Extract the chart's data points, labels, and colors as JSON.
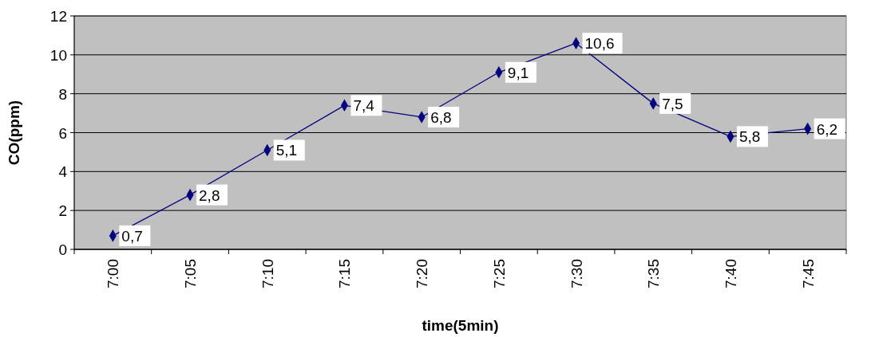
{
  "chart_data": {
    "type": "line",
    "xlabel": "time(5min)",
    "ylabel": "CO(ppm)",
    "categories": [
      "7:00",
      "7:05",
      "7:10",
      "7:15",
      "7:20",
      "7:25",
      "7:30",
      "7:35",
      "7:40",
      "7:45"
    ],
    "series": [
      {
        "color": "#000080",
        "values": [
          0.7,
          2.8,
          5.1,
          7.4,
          6.8,
          9.1,
          10.6,
          7.5,
          5.8,
          6.2
        ],
        "value_labels": [
          "0,7",
          "2,8",
          "5,1",
          "7,4",
          "6,8",
          "9,1",
          "10,6",
          "7,5",
          "5,8",
          "6,2"
        ]
      }
    ],
    "ylim": [
      0,
      12
    ],
    "yticks": [
      0,
      2,
      4,
      6,
      8,
      10,
      12
    ],
    "grid": "y",
    "marker": "diamond",
    "line_style": "solid"
  }
}
